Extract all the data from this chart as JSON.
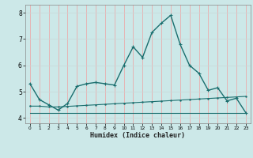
{
  "xlabel": "Humidex (Indice chaleur)",
  "background_color": "#cce8e8",
  "line_color": "#1a6e6e",
  "grid_color_v": "#f0a0a0",
  "grid_color_h": "#c8d8d8",
  "xlim": [
    -0.5,
    23.5
  ],
  "ylim": [
    3.8,
    8.3
  ],
  "yticks": [
    4,
    5,
    6,
    7,
    8
  ],
  "xticks": [
    0,
    1,
    2,
    3,
    4,
    5,
    6,
    7,
    8,
    9,
    10,
    11,
    12,
    13,
    14,
    15,
    16,
    17,
    18,
    19,
    20,
    21,
    22,
    23
  ],
  "series1_x": [
    0,
    1,
    2,
    3,
    4,
    5,
    6,
    7,
    8,
    9,
    10,
    11,
    12,
    13,
    14,
    15,
    16,
    17,
    18,
    19,
    20,
    21,
    22,
    23
  ],
  "series1_y": [
    5.3,
    4.7,
    4.5,
    4.3,
    4.55,
    5.2,
    5.3,
    5.35,
    5.3,
    5.25,
    6.0,
    6.7,
    6.3,
    7.25,
    7.6,
    7.9,
    6.8,
    6.0,
    5.7,
    5.05,
    5.15,
    4.65,
    4.75,
    4.2
  ],
  "series2_x": [
    0,
    1,
    2,
    3,
    4,
    5,
    6,
    7,
    8,
    9,
    10,
    11,
    12,
    13,
    14,
    15,
    16,
    17,
    18,
    19,
    20,
    21,
    22,
    23
  ],
  "series2_y": [
    4.45,
    4.45,
    4.42,
    4.42,
    4.44,
    4.46,
    4.48,
    4.5,
    4.52,
    4.54,
    4.56,
    4.58,
    4.6,
    4.62,
    4.64,
    4.66,
    4.68,
    4.7,
    4.72,
    4.74,
    4.76,
    4.78,
    4.8,
    4.82
  ],
  "series3_x": [
    0,
    1,
    2,
    3,
    4,
    5,
    6,
    7,
    8,
    9,
    10,
    11,
    12,
    13,
    14,
    15,
    16,
    17,
    18,
    19,
    20,
    21,
    22,
    23
  ],
  "series3_y": [
    4.2,
    4.2,
    4.2,
    4.2,
    4.2,
    4.2,
    4.2,
    4.2,
    4.2,
    4.2,
    4.2,
    4.2,
    4.2,
    4.2,
    4.2,
    4.2,
    4.2,
    4.2,
    4.2,
    4.2,
    4.2,
    4.2,
    4.2,
    4.2
  ]
}
